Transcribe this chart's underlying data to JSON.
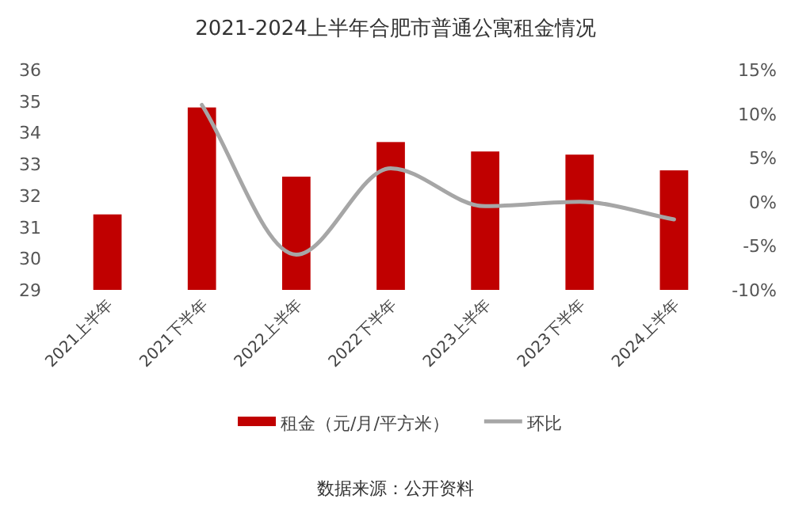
{
  "chart_data": {
    "type": "bar",
    "title": "2021-2024上半年合肥市普通公寓租金情况",
    "categories": [
      "2021上半年",
      "2021下半年",
      "2022上半年",
      "2022下半年",
      "2023上半年",
      "2023下半年",
      "2024上半年"
    ],
    "series": [
      {
        "name": "租金（元/月/平方米）",
        "color": "#c00000",
        "values": [
          31.4,
          34.8,
          32.6,
          33.7,
          33.4,
          33.3,
          32.8
        ]
      },
      {
        "name": "环比",
        "type": "line",
        "axis": "y2",
        "color": "#a6a6a6",
        "values": [
          null,
          11,
          -6,
          3.8,
          -0.5,
          0,
          -2
        ]
      }
    ],
    "ylim": [
      29,
      36
    ],
    "yticks": [
      29,
      30,
      31,
      32,
      33,
      34,
      35,
      36
    ],
    "y2lim": [
      -10,
      15
    ],
    "y2ticks": [
      {
        "value": -10,
        "label": "-10%"
      },
      {
        "value": -5,
        "label": "-5%"
      },
      {
        "value": 0,
        "label": "0%"
      },
      {
        "value": 5,
        "label": "5%"
      },
      {
        "value": 10,
        "label": "10%"
      },
      {
        "value": 15,
        "label": "15%"
      }
    ],
    "legend": "bottom",
    "annotations": [
      "数据来源：公开资料"
    ]
  }
}
